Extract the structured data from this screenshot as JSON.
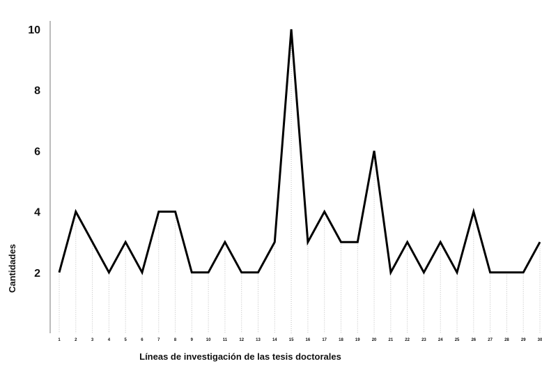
{
  "chart_data": {
    "type": "line",
    "title": "",
    "xlabel": "Líneas de investigación de las tesis doctorales",
    "ylabel": "Cantidades",
    "x": [
      "1",
      "2",
      "3",
      "4",
      "5",
      "6",
      "7",
      "8",
      "9",
      "10",
      "11",
      "12",
      "13",
      "14",
      "15",
      "16",
      "17",
      "18",
      "19",
      "20",
      "21",
      "22",
      "23",
      "24",
      "25",
      "26",
      "27",
      "28",
      "29",
      "30"
    ],
    "series": [
      {
        "values": [
          2,
          4,
          3,
          2,
          3,
          2,
          4,
          4,
          2,
          2,
          3,
          2,
          2,
          3,
          10,
          3,
          4,
          3,
          3,
          6,
          2,
          3,
          2,
          3,
          2,
          4,
          2,
          2,
          2,
          3
        ]
      }
    ],
    "yticks": [
      "2",
      "4",
      "6",
      "8",
      "10"
    ],
    "ylim": [
      0,
      10.5
    ],
    "grid": false,
    "drop_lines": true,
    "line_color": "#000000"
  }
}
